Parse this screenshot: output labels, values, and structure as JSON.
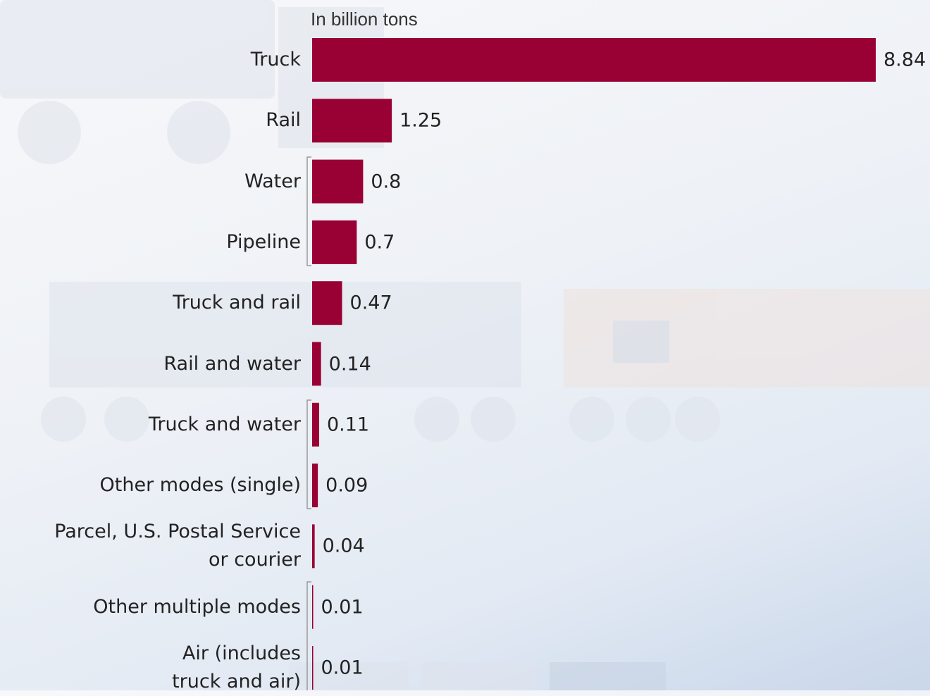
{
  "chart_data": {
    "type": "bar",
    "orientation": "horizontal",
    "subtitle": "In billion tons",
    "categories": [
      "Truck",
      "Rail",
      "Water",
      "Pipeline",
      "Truck and rail",
      "Rail and water",
      "Truck and water",
      "Other modes (single)",
      "Parcel, U.S. Postal Service\nor courier",
      "Other multiple modes",
      "Air (includes\ntruck and air)"
    ],
    "values": [
      8.84,
      1.25,
      0.8,
      0.7,
      0.47,
      0.14,
      0.11,
      0.09,
      0.04,
      0.01,
      0.01
    ],
    "color": "#990033"
  }
}
